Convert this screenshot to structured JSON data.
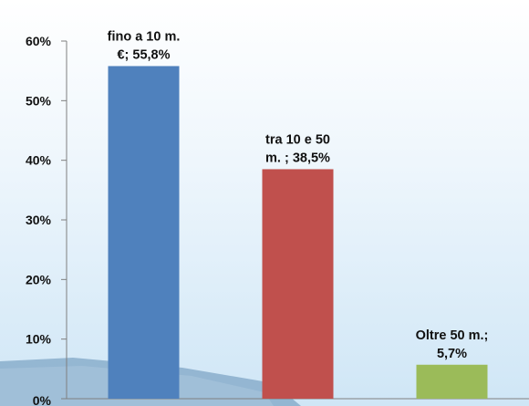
{
  "chart_data": {
    "type": "bar",
    "categories": [
      "fino a 10 m. €",
      "tra 10 e 50 m.",
      "Oltre 50 m."
    ],
    "values": [
      55.8,
      38.5,
      5.7
    ],
    "colors": [
      "#4f81bd",
      "#c0504d",
      "#9bbb59"
    ],
    "data_labels": [
      [
        "fino a 10 m.",
        "€; 55,8%"
      ],
      [
        "tra 10 e 50",
        "m.  ; 38,5%"
      ],
      [
        "Oltre 50 m.;",
        "5,7%"
      ]
    ],
    "yticks": [
      "0%",
      "10%",
      "20%",
      "30%",
      "40%",
      "50%",
      "60%"
    ],
    "ylim": [
      0,
      60
    ],
    "title": "",
    "xlabel": "",
    "ylabel": "",
    "grid": false,
    "legend": "none"
  }
}
